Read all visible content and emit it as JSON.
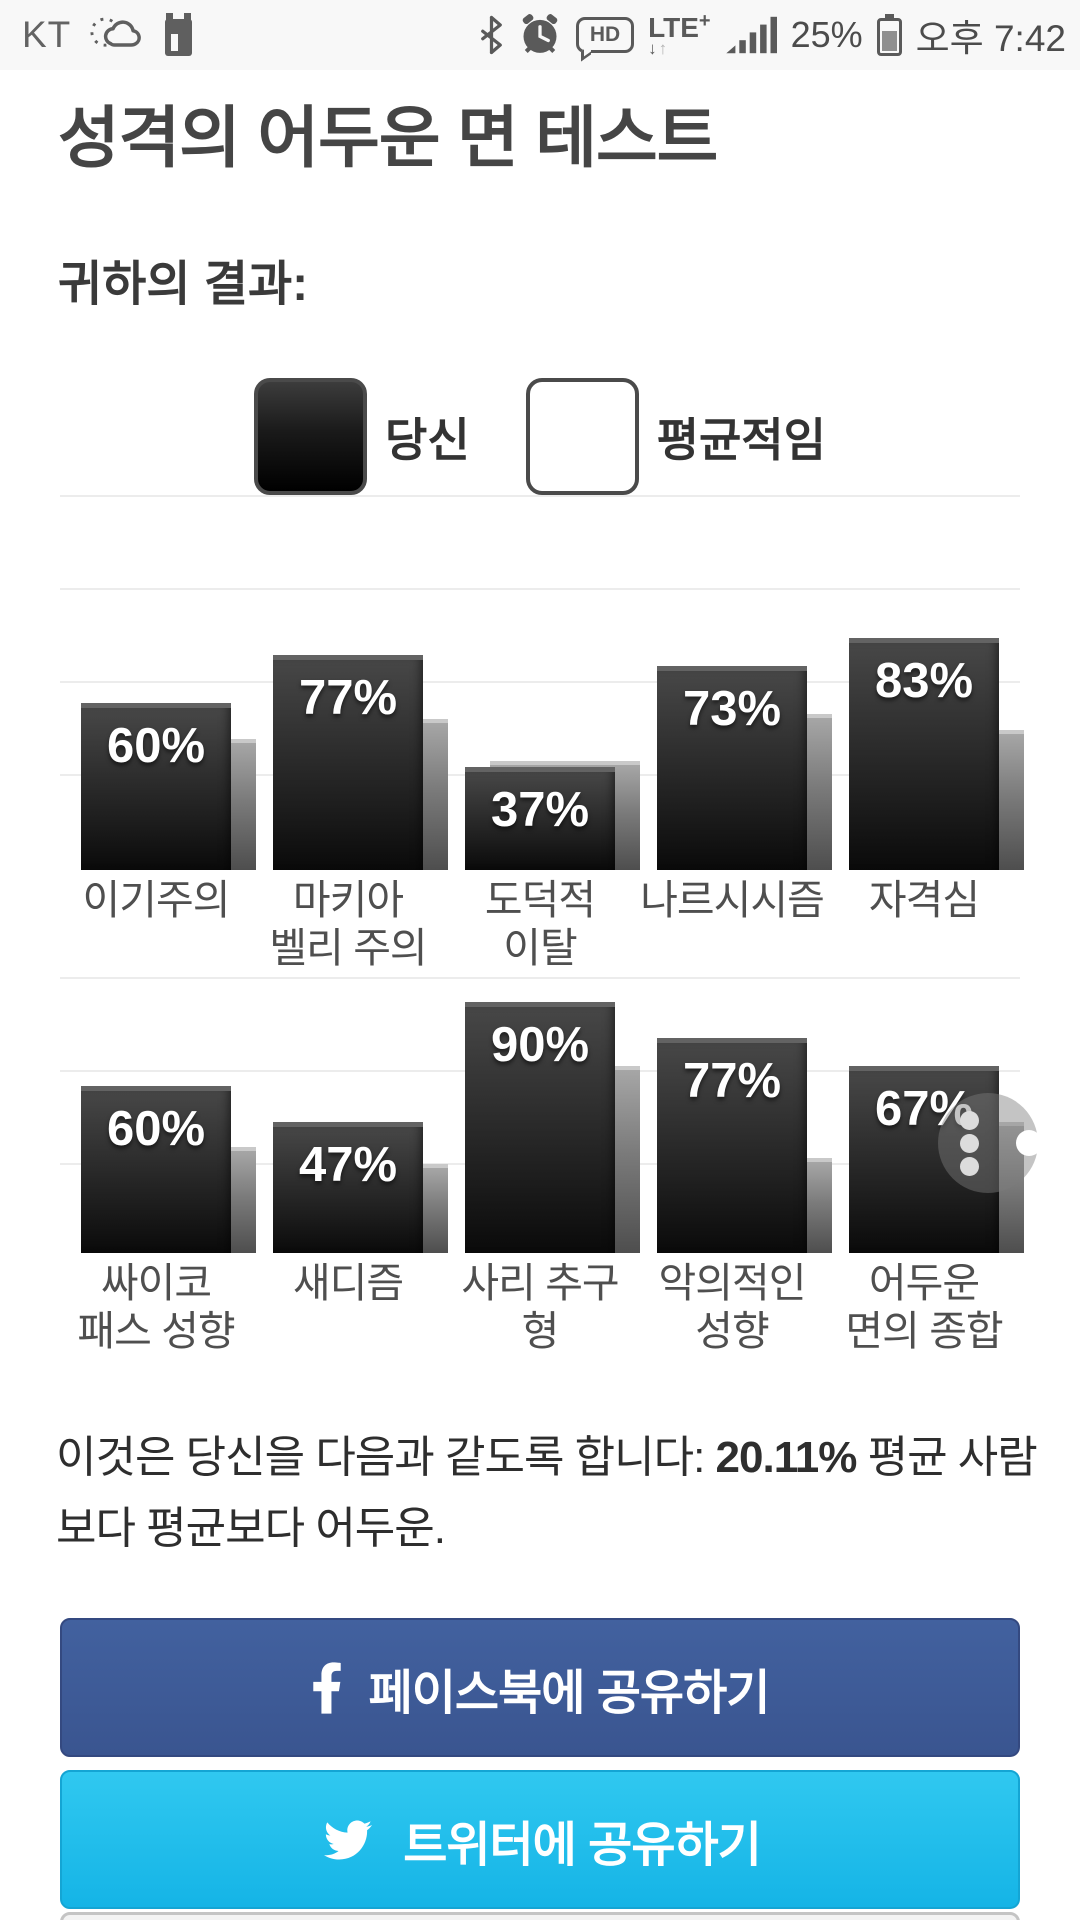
{
  "status_bar": {
    "carrier": "KT",
    "battery_percent": "25%",
    "time": "오후 7:42",
    "hd_label": "HD",
    "lte_label": "LTE",
    "lte_plus": "+",
    "lte_arrows_down": "↓",
    "lte_arrows_up": "↑",
    "icons": [
      "weather-sun-cloud-icon",
      "app-notification-icon",
      "bluetooth-icon",
      "alarm-icon",
      "hd-voice-icon",
      "lte-plus-icon",
      "signal-strength-icon",
      "battery-icon"
    ]
  },
  "page": {
    "title": "성격의 어두운 면 테스트",
    "results_heading": "귀하의 결과:"
  },
  "legend": {
    "you_label": "당신",
    "average_label": "평균적임",
    "you_color": "#111111",
    "average_color": "#8d8d8d"
  },
  "chart_data": [
    {
      "type": "bar",
      "categories": [
        "이기주의",
        "마키아\n벨리 주의",
        "도덕적\n이탈",
        "나르시시즘",
        "자격심"
      ],
      "series": [
        {
          "name": "당신",
          "values": [
            60,
            77,
            37,
            73,
            83
          ]
        },
        {
          "name": "평균적임",
          "values": [
            47,
            54,
            39,
            56,
            50
          ]
        }
      ],
      "value_labels": [
        "60%",
        "77%",
        "37%",
        "73%",
        "83%"
      ],
      "ylim": [
        0,
        100
      ],
      "grid": true,
      "legend_position": "top",
      "bar_color_you": "#222222",
      "bar_color_avg": "#8d8d8d"
    },
    {
      "type": "bar",
      "categories": [
        "싸이코\n패스 성향",
        "새디즘",
        "사리 추구형",
        "악의적인\n성향",
        "어두운\n면의 종합"
      ],
      "series": [
        {
          "name": "당신",
          "values": [
            60,
            47,
            90,
            77,
            67
          ]
        },
        {
          "name": "평균적임",
          "values": [
            38,
            32,
            67,
            34,
            47
          ]
        }
      ],
      "value_labels": [
        "60%",
        "47%",
        "90%",
        "77%",
        "67%"
      ],
      "ylim": [
        0,
        100
      ],
      "grid": true,
      "bar_color_you": "#222222",
      "bar_color_avg": "#8d8d8d"
    }
  ],
  "result_text": {
    "prefix": "이것은 당신을 다음과 같도록 합니다: ",
    "highlight": "20.11%",
    "suffix": " 평균 사람보다 평균보다 어두운."
  },
  "share": {
    "facebook_label": "페이스북에 공유하기",
    "facebook_color": "#3d5a96",
    "twitter_label": "트위터에 공유하기",
    "twitter_color": "#1fbdec"
  }
}
